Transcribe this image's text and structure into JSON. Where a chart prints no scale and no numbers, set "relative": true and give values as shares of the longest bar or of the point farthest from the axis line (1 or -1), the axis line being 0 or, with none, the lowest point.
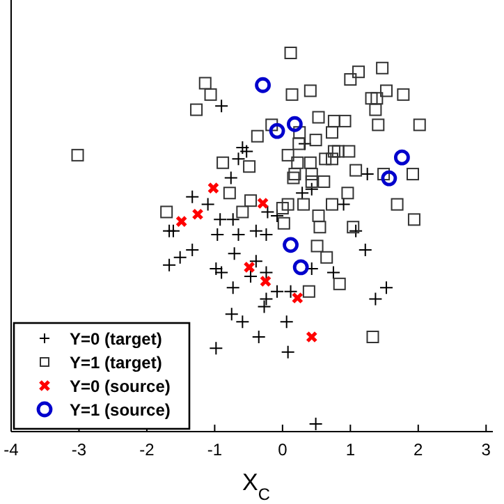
{
  "chart_data": {
    "type": "scatter",
    "xlabel": "X$_{C}$",
    "relative": true,
    "tick_labels": "x",
    "legend": "bottom left",
    "grid": false,
    "xlim": [
      -4,
      3.1
    ],
    "xticks": [
      -4,
      -3,
      -2,
      -1,
      0,
      1,
      2,
      3
    ],
    "series": [
      {
        "name": "Y=0 (target)",
        "color": "#000000",
        "marker": "cross",
        "x": [
          -0.9,
          -0.59,
          -0.53,
          -0.65,
          -0.76,
          0.33,
          1.25,
          0.43,
          0.29,
          -1.33,
          -1.1,
          0.9,
          -0.92,
          -0.73,
          -0.22,
          -0.08,
          -1.67,
          -1.61,
          -0.96,
          -0.65,
          -0.39,
          -0.24,
          1.08,
          -1.33,
          -0.71,
          -0.39,
          -1.67,
          -1.51,
          -0.98,
          -0.9,
          1.22,
          0.43,
          0.75,
          -0.73,
          -0.24,
          -0.47,
          -0.08,
          -0.24,
          0.12,
          -0.27,
          -0.75,
          -0.59,
          0.06,
          -0.35,
          -0.98,
          0.08,
          1.37,
          1.53,
          0.49
        ],
        "values": [
          0.86,
          0.75,
          0.74,
          0.72,
          0.67,
          0.76,
          0.68,
          0.64,
          0.63,
          0.62,
          0.6,
          0.6,
          0.56,
          0.56,
          0.58,
          0.57,
          0.53,
          0.53,
          0.52,
          0.52,
          0.53,
          0.52,
          0.53,
          0.48,
          0.47,
          0.45,
          0.44,
          0.46,
          0.43,
          0.42,
          0.48,
          0.43,
          0.42,
          0.38,
          0.42,
          0.41,
          0.37,
          0.35,
          0.37,
          0.33,
          0.31,
          0.29,
          0.29,
          0.25,
          0.22,
          0.21,
          0.35,
          0.38,
          0.02
        ]
      },
      {
        "name": "Y=1 (target)",
        "color": "#333333",
        "marker": "square",
        "x": [
          0.12,
          -1.14,
          -1.06,
          -1.27,
          0.14,
          0.41,
          1.12,
          1.0,
          1.47,
          1.53,
          1.78,
          1.31,
          1.39,
          1.37,
          -3.02,
          0.53,
          0.76,
          0.92,
          0.73,
          1.41,
          2.02,
          -0.37,
          -0.16,
          0.25,
          0.24,
          0.49,
          0.76,
          0.82,
          0.98,
          0.73,
          0.63,
          0.08,
          0.22,
          0.41,
          -0.88,
          -0.49,
          1.08,
          0.43,
          0.18,
          0.16,
          0.43,
          0.61,
          1.49,
          1.92,
          -0.78,
          -0.47,
          0.96,
          0.08,
          0.0,
          0.31,
          0.73,
          1.69,
          -1.71,
          -0.59,
          0.53,
          0.02,
          0.55,
          1.04,
          1.94,
          0.51,
          0.65,
          0.84,
          0.39,
          1.33
        ],
        "values": [
          1.0,
          0.92,
          0.89,
          0.85,
          0.89,
          0.9,
          0.95,
          0.93,
          0.96,
          0.9,
          0.89,
          0.88,
          0.88,
          0.85,
          0.73,
          0.83,
          0.82,
          0.82,
          0.79,
          0.81,
          0.81,
          0.78,
          0.81,
          0.79,
          0.76,
          0.77,
          0.74,
          0.74,
          0.74,
          0.72,
          0.72,
          0.73,
          0.71,
          0.71,
          0.71,
          0.7,
          0.69,
          0.68,
          0.68,
          0.67,
          0.66,
          0.66,
          0.68,
          0.68,
          0.63,
          0.61,
          0.63,
          0.6,
          0.59,
          0.6,
          0.6,
          0.6,
          0.58,
          0.58,
          0.57,
          0.55,
          0.54,
          0.54,
          0.56,
          0.49,
          0.46,
          0.39,
          0.37,
          0.25
        ]
      },
      {
        "name": "Y=0 (source)",
        "color": "#ff0000",
        "marker": "x",
        "x": [
          -1.02,
          -0.29,
          -1.25,
          -1.49,
          -0.49,
          -0.25,
          0.22,
          0.43
        ],
        "values": [
          0.643,
          0.603,
          0.574,
          0.555,
          0.434,
          0.397,
          0.353,
          0.25
        ]
      },
      {
        "name": "Y=1 (source)",
        "color": "#0000cc",
        "marker": "circle",
        "x": [
          -0.29,
          -0.08,
          0.18,
          1.76,
          1.57,
          0.12,
          0.27
        ],
        "values": [
          0.915,
          0.794,
          0.812,
          0.724,
          0.669,
          0.493,
          0.434
        ]
      }
    ]
  }
}
